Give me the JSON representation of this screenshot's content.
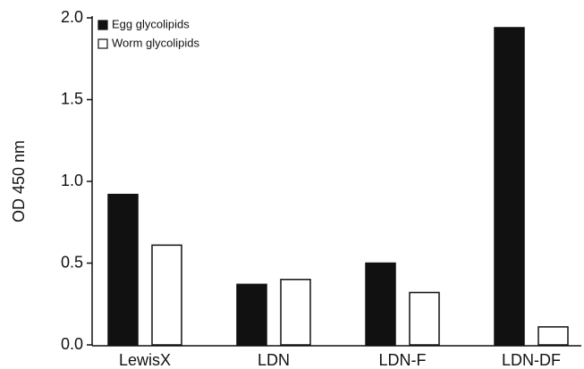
{
  "chart_data": {
    "type": "bar",
    "y_label": "OD 450 nm",
    "categories": [
      "LewisX",
      "LDN",
      "LDN-F",
      "LDN-DF"
    ],
    "series": [
      {
        "name": "Egg glycolipids",
        "color": "#111111",
        "values": [
          0.92,
          0.37,
          0.5,
          1.94
        ]
      },
      {
        "name": "Worm glycolipids",
        "color": "#ffffff",
        "values": [
          0.61,
          0.4,
          0.32,
          0.11
        ]
      }
    ],
    "ylim": [
      0,
      2
    ],
    "yticks": [
      {
        "value": 0,
        "label": "0.0"
      },
      0.5,
      {
        "value": 1,
        "label": "1.0"
      },
      1.5,
      {
        "value": 2,
        "label": "2.0"
      }
    ],
    "legend": "upper left"
  }
}
